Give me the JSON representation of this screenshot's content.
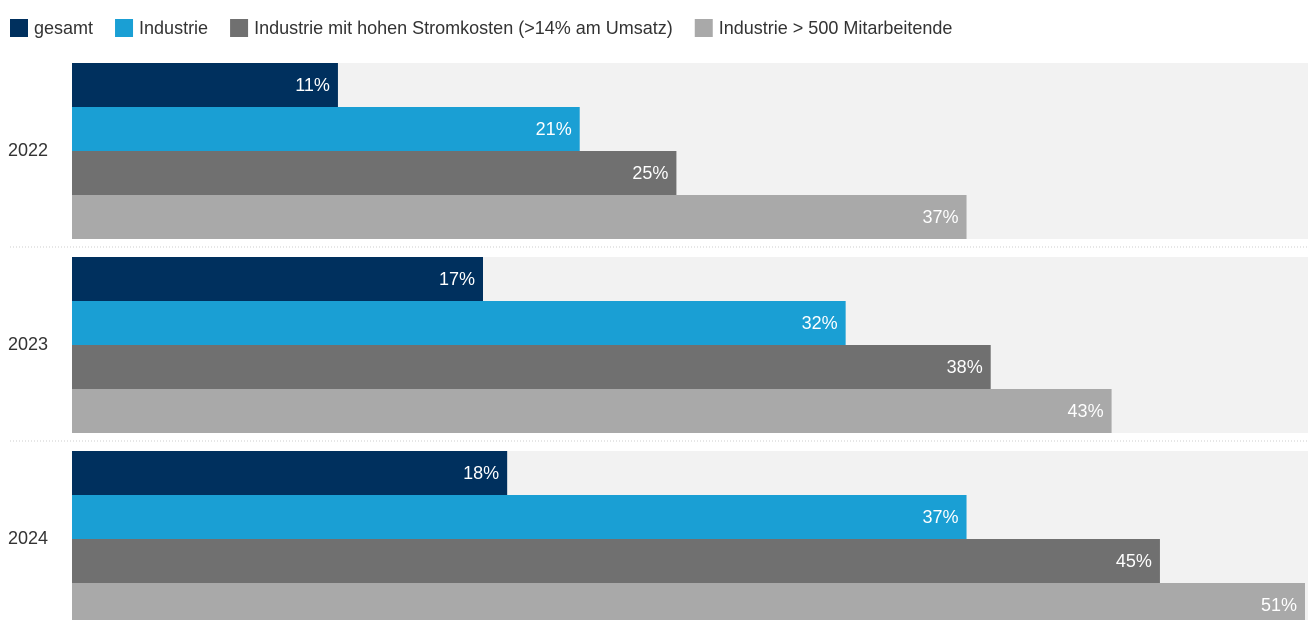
{
  "chart_data": {
    "type": "bar",
    "orientation": "horizontal",
    "categories": [
      "2022",
      "2023",
      "2024"
    ],
    "series": [
      {
        "name": "gesamt",
        "color": "#00305e",
        "values": [
          11,
          17,
          18
        ],
        "value_labels": [
          "11%",
          "17%",
          "18%"
        ]
      },
      {
        "name": "Industrie",
        "color": "#1a9fd4",
        "values": [
          21,
          32,
          37
        ],
        "value_labels": [
          "21%",
          "32%",
          "37%"
        ]
      },
      {
        "name": "Industrie mit hohen Stromkosten (>14% am Umsatz)",
        "color": "#707070",
        "values": [
          25,
          38,
          45
        ],
        "value_labels": [
          "25%",
          "38%",
          "45%"
        ]
      },
      {
        "name": "Industrie > 500 Mitarbeitende",
        "color": "#a9a9a9",
        "values": [
          37,
          43,
          51
        ],
        "value_labels": [
          "37%",
          "43%",
          "51%"
        ]
      }
    ],
    "xlim": [
      0,
      51
    ],
    "legend": "top"
  }
}
